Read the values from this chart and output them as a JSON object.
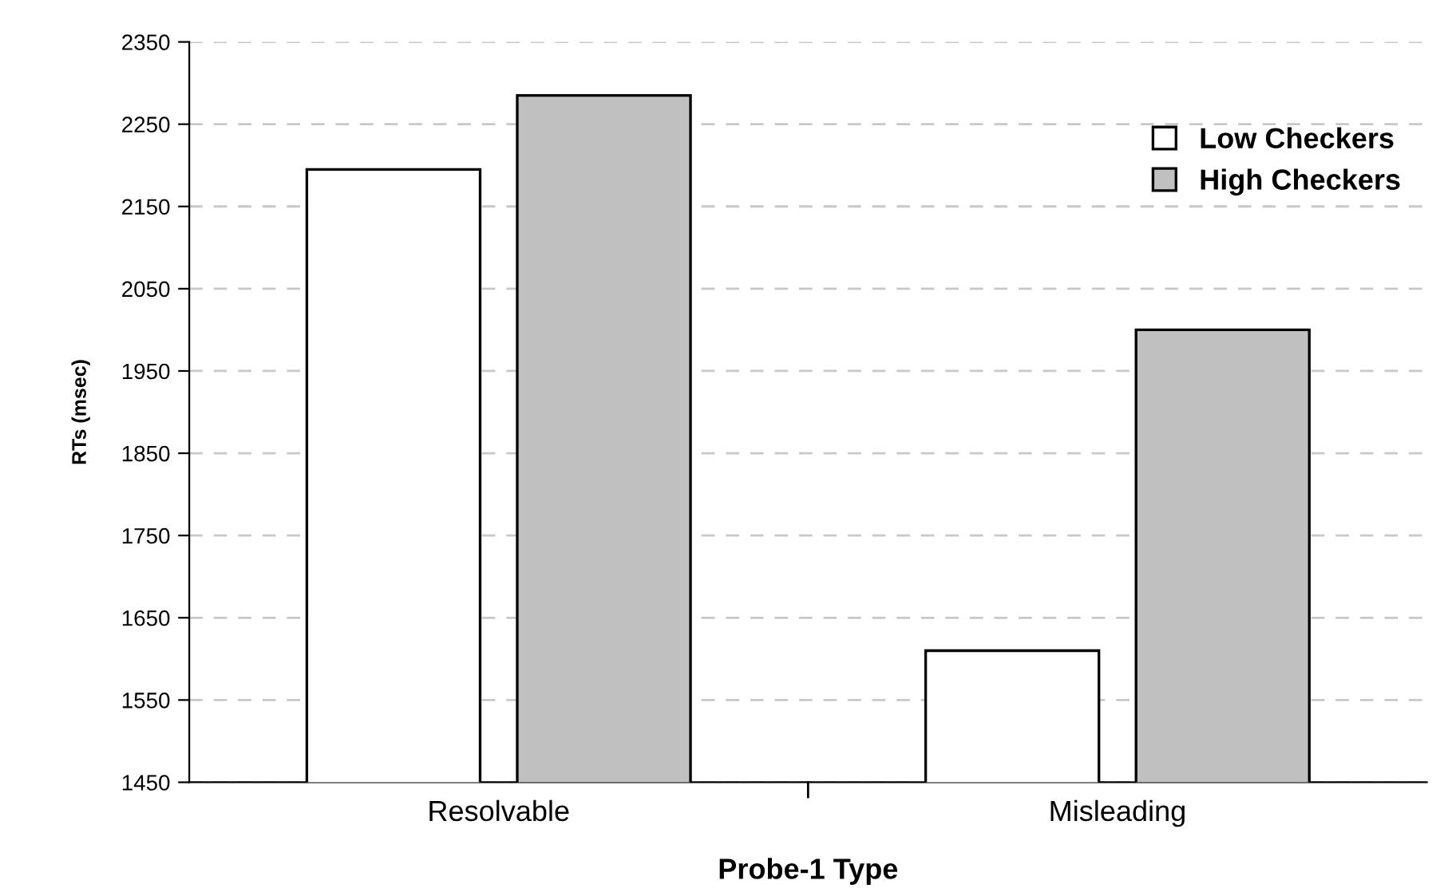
{
  "chart_data": {
    "type": "bar",
    "xlabel": "Probe-1 Type",
    "ylabel": "RTs (msec)",
    "categories": [
      "Resolvable",
      "Misleading"
    ],
    "series": [
      {
        "name": "Low Checkers",
        "color": "#ffffff",
        "values": [
          2195,
          1610
        ]
      },
      {
        "name": "High Checkers",
        "color": "#c0c0c0",
        "values": [
          2285,
          2000
        ]
      }
    ],
    "ylim": [
      1450,
      2350
    ],
    "yticks": [
      1450,
      1550,
      1650,
      1750,
      1850,
      1950,
      2050,
      2150,
      2250,
      2350
    ],
    "grid": "y",
    "legend": "top right"
  }
}
